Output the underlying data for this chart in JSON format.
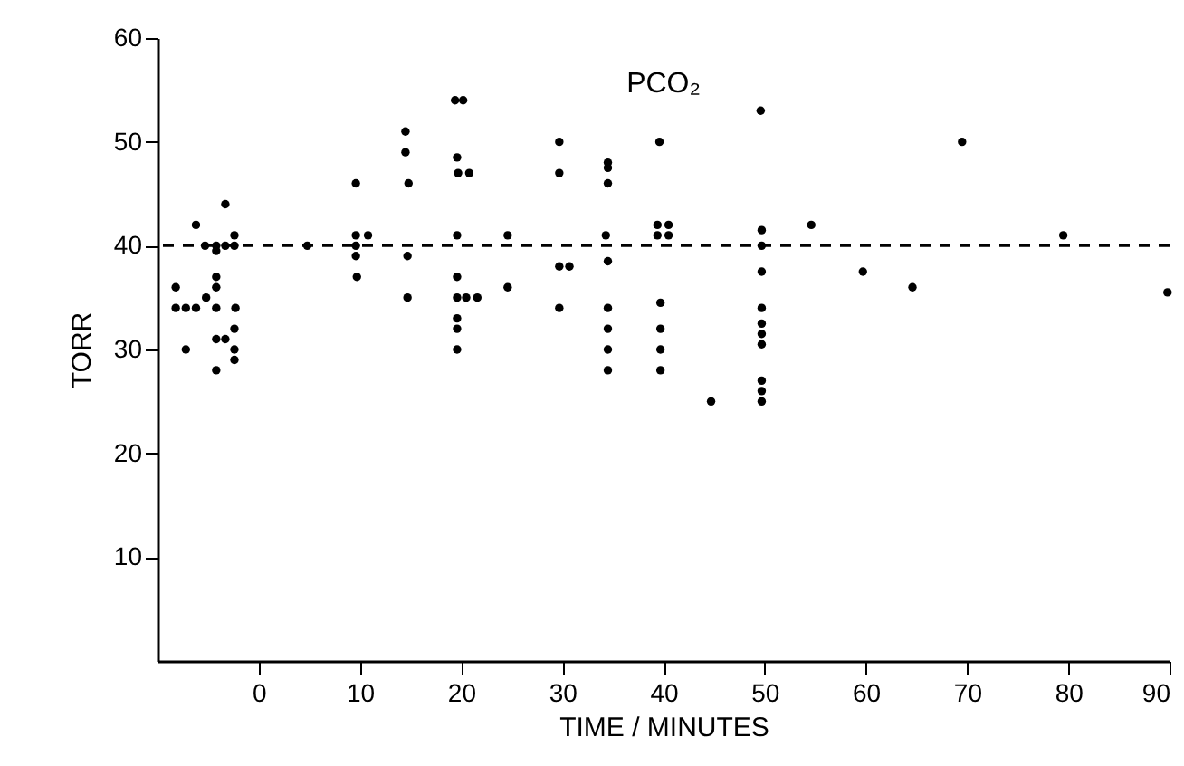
{
  "chart_data": {
    "type": "scatter",
    "title": "PCO₂",
    "xlabel": "TIME / MINUTES",
    "ylabel": "TORR",
    "x": [
      -8.2,
      -8.2,
      -7.2,
      -6.2,
      -7.2,
      -6.2,
      -5.3,
      -4.2,
      -5.2,
      -4.2,
      -3.3,
      -4.2,
      -4.2,
      -4.2,
      -4.2,
      -3.3,
      -4.2,
      -3.3,
      -2.4,
      -2.4,
      -2.3,
      -2.4,
      -2.4,
      -2.4,
      4.8,
      9.6,
      9.6,
      10.8,
      9.6,
      9.6,
      9.7,
      14.5,
      14.5,
      14.8,
      14.7,
      14.7,
      19.4,
      20.2,
      19.6,
      19.7,
      20.8,
      19.6,
      19.6,
      19.6,
      20.5,
      21.6,
      19.6,
      19.6,
      19.6,
      24.6,
      24.6,
      29.7,
      29.7,
      29.7,
      30.7,
      29.7,
      34.5,
      34.5,
      34.5,
      34.3,
      34.5,
      34.5,
      34.5,
      34.5,
      34.5,
      39.6,
      39.4,
      40.5,
      39.4,
      40.5,
      39.7,
      39.7,
      39.7,
      39.7,
      44.7,
      49.6,
      49.7,
      49.7,
      49.7,
      49.7,
      49.7,
      49.7,
      49.7,
      49.7,
      49.7,
      49.7,
      54.6,
      59.7,
      64.6,
      69.5,
      79.5,
      89.8
    ],
    "values": [
      36,
      34,
      34,
      34,
      30,
      42,
      40,
      39.5,
      35,
      40,
      40,
      37,
      36,
      34,
      31,
      31,
      28,
      44,
      41,
      40,
      34,
      32,
      30,
      29,
      40,
      46,
      41,
      41,
      40,
      39,
      37,
      51,
      49,
      46,
      39,
      35,
      54,
      54,
      48.5,
      47,
      47,
      41,
      37,
      35,
      35,
      35,
      33,
      32,
      30,
      41,
      36,
      50,
      47,
      38,
      38,
      34,
      48,
      47.5,
      46,
      41,
      38.5,
      34,
      32,
      30,
      28,
      50,
      42,
      42,
      41,
      41,
      34.5,
      32,
      30,
      28,
      25,
      53,
      41.5,
      40,
      37.5,
      34,
      32.5,
      31.5,
      30.5,
      27,
      26,
      25,
      42,
      37.5,
      36,
      50,
      41,
      35.5
    ],
    "color": "#000000",
    "marker": "circle",
    "xlim": [
      -10,
      90
    ],
    "xticks": [
      0,
      10,
      20,
      30,
      40,
      50,
      60,
      70,
      80,
      90
    ],
    "ylim": [
      0,
      60
    ],
    "yticks": [
      10,
      20,
      30,
      40,
      50,
      60
    ],
    "grid": false,
    "ref_lines": [
      {
        "axis": "y",
        "value": 40,
        "line_style": "dashed",
        "color": "#000000"
      }
    ]
  }
}
